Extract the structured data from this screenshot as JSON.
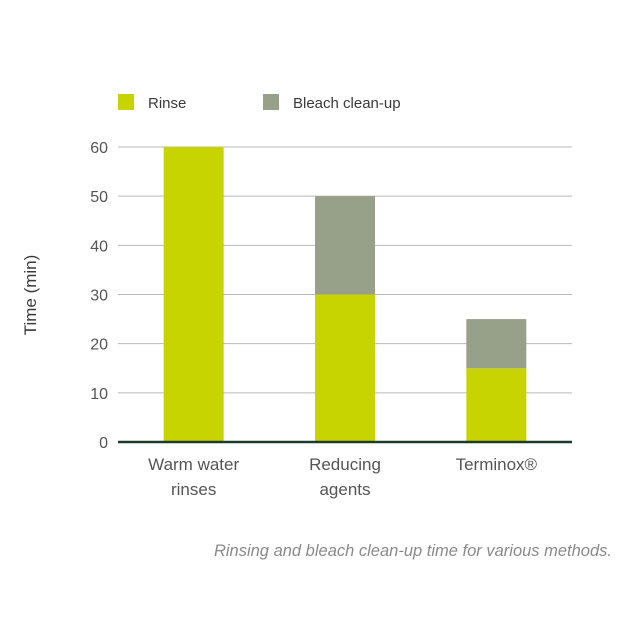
{
  "chart_data": {
    "type": "bar",
    "stacked": true,
    "categories": [
      [
        "Warm water",
        "rinses"
      ],
      [
        "Reducing",
        "agents"
      ],
      [
        "Terminox®"
      ]
    ],
    "series": [
      {
        "name": "Rinse",
        "color": "#c8d400",
        "values": [
          60,
          30,
          15
        ]
      },
      {
        "name": "Bleach clean-up",
        "color": "#97a18a",
        "values": [
          0,
          20,
          10
        ]
      }
    ],
    "ylabel": "Time (min)",
    "ylim": [
      0,
      60
    ],
    "yticks": [
      0,
      10,
      20,
      30,
      40,
      50,
      60
    ],
    "grid": true,
    "legend": "top",
    "caption": "Rinsing and bleach clean-up time for various methods."
  }
}
